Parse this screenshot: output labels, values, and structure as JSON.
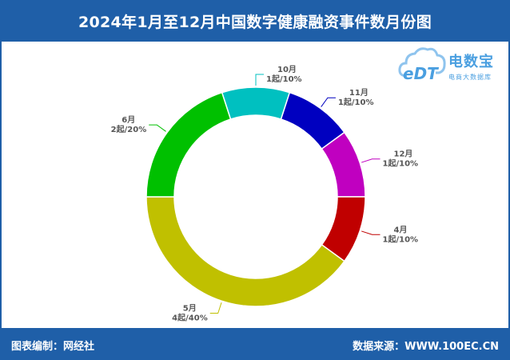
{
  "header": {
    "title": "2024年1月至12月中国数字健康融资事件数月份图"
  },
  "footer": {
    "left": "图表编制：网经社",
    "right": "数据来源：WWW.100EC.CN"
  },
  "logo": {
    "brand": "电数宝",
    "sub": "电商大数据库",
    "icon": "cloud-edt-icon",
    "color": "#4a9fe0"
  },
  "chart_data": {
    "type": "pie",
    "subtype": "donut",
    "title": "2024年1月至12月中国数字健康融资事件数月份图",
    "slices": [
      {
        "label": "10月",
        "detail": "1起/10%",
        "value": 1,
        "percent": 10,
        "color": "#00c0c0"
      },
      {
        "label": "11月",
        "detail": "1起/10%",
        "value": 1,
        "percent": 10,
        "color": "#0000c0"
      },
      {
        "label": "12月",
        "detail": "1起/10%",
        "value": 1,
        "percent": 10,
        "color": "#c000c0"
      },
      {
        "label": "4月",
        "detail": "1起/10%",
        "value": 1,
        "percent": 10,
        "color": "#c00000"
      },
      {
        "label": "5月",
        "detail": "4起/40%",
        "value": 4,
        "percent": 40,
        "color": "#c0c000"
      },
      {
        "label": "6月",
        "detail": "2起/20%",
        "value": 2,
        "percent": 20,
        "color": "#00c000"
      }
    ]
  }
}
